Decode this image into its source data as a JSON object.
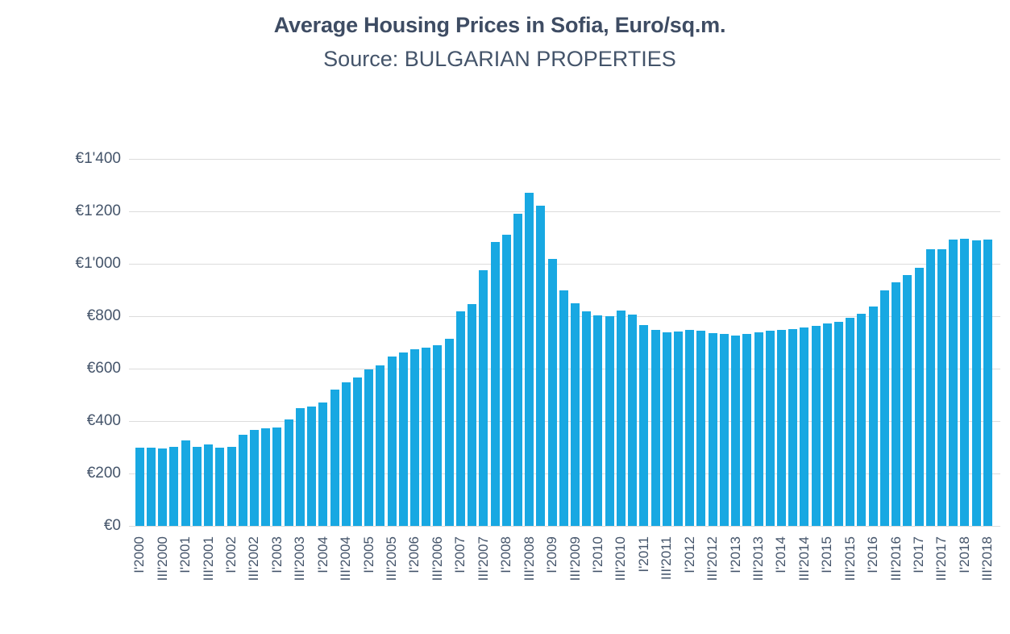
{
  "title": "Average Housing Prices in Sofia, Euro/sq.m.",
  "subtitle": "Source: BULGARIAN PROPERTIES",
  "colors": {
    "bar": "#18a8e2",
    "gridline": "#dcdcdc",
    "title_text": "#3e4c63",
    "axis_text": "#44546a",
    "background": "#ffffff"
  },
  "chart_data": {
    "type": "bar",
    "title": "Average Housing Prices in Sofia, Euro/sq.m.",
    "subtitle": "Source: BULGARIAN PROPERTIES",
    "xlabel": "",
    "ylabel": "",
    "ylim": [
      0,
      1400
    ],
    "y_tick_step": 200,
    "grid": true,
    "legend": "none",
    "y_tick_labels_top_to_bottom": [
      "€1'400",
      "€1'200",
      "€1'000",
      "€800",
      "€600",
      "€400",
      "€200",
      "€0"
    ],
    "x_tick_labels_visible": [
      "I'2000",
      "III'2000",
      "I'2001",
      "III'2001",
      "I'2002",
      "III'2002",
      "I'2003",
      "III'2003",
      "I'2004",
      "III'2004",
      "I'2005",
      "III'2005",
      "I'2006",
      "III'2006",
      "I'2007",
      "III'2007",
      "I'2008",
      "III'2008",
      "I'2009",
      "III'2009",
      "I'2010",
      "III'2010",
      "I'2011",
      "III'2011",
      "I'2012",
      "III'2012",
      "I'2013",
      "III'2013",
      "I'2014",
      "III'2014",
      "I'2015",
      "III'2015",
      "I'2016",
      "III'2016",
      "I'2017",
      "III'2017",
      "I'2018",
      "III'2018"
    ],
    "categories": [
      "I'2000",
      "II'2000",
      "III'2000",
      "IV'2000",
      "I'2001",
      "II'2001",
      "III'2001",
      "IV'2001",
      "I'2002",
      "II'2002",
      "III'2002",
      "IV'2002",
      "I'2003",
      "II'2003",
      "III'2003",
      "IV'2003",
      "I'2004",
      "II'2004",
      "III'2004",
      "IV'2004",
      "I'2005",
      "II'2005",
      "III'2005",
      "IV'2005",
      "I'2006",
      "II'2006",
      "III'2006",
      "IV'2006",
      "I'2007",
      "II'2007",
      "III'2007",
      "IV'2007",
      "I'2008",
      "II'2008",
      "III'2008",
      "IV'2008",
      "I'2009",
      "II'2009",
      "III'2009",
      "IV'2009",
      "I'2010",
      "II'2010",
      "III'2010",
      "IV'2010",
      "I'2011",
      "II'2011",
      "III'2011",
      "IV'2011",
      "I'2012",
      "II'2012",
      "III'2012",
      "IV'2012",
      "I'2013",
      "II'2013",
      "III'2013",
      "IV'2013",
      "I'2014",
      "II'2014",
      "III'2014",
      "IV'2014",
      "I'2015",
      "II'2015",
      "III'2015",
      "IV'2015",
      "I'2016",
      "II'2016",
      "III'2016",
      "IV'2016",
      "I'2017",
      "II'2017",
      "III'2017",
      "IV'2017",
      "I'2018",
      "II'2018",
      "III'2018"
    ],
    "values": [
      300,
      298,
      296,
      303,
      327,
      303,
      310,
      300,
      302,
      348,
      366,
      373,
      377,
      406,
      448,
      455,
      470,
      520,
      548,
      565,
      596,
      611,
      646,
      663,
      675,
      680,
      690,
      715,
      818,
      845,
      975,
      1083,
      1110,
      1190,
      1272,
      1221,
      1020,
      900,
      848,
      820,
      804,
      800,
      822,
      807,
      765,
      748,
      740,
      742,
      748,
      744,
      737,
      733,
      726,
      732,
      738,
      745,
      748,
      750,
      756,
      763,
      771,
      780,
      795,
      810,
      837,
      898,
      928,
      958,
      985,
      1057,
      1057,
      1092,
      1097,
      1090,
      1093
    ]
  }
}
